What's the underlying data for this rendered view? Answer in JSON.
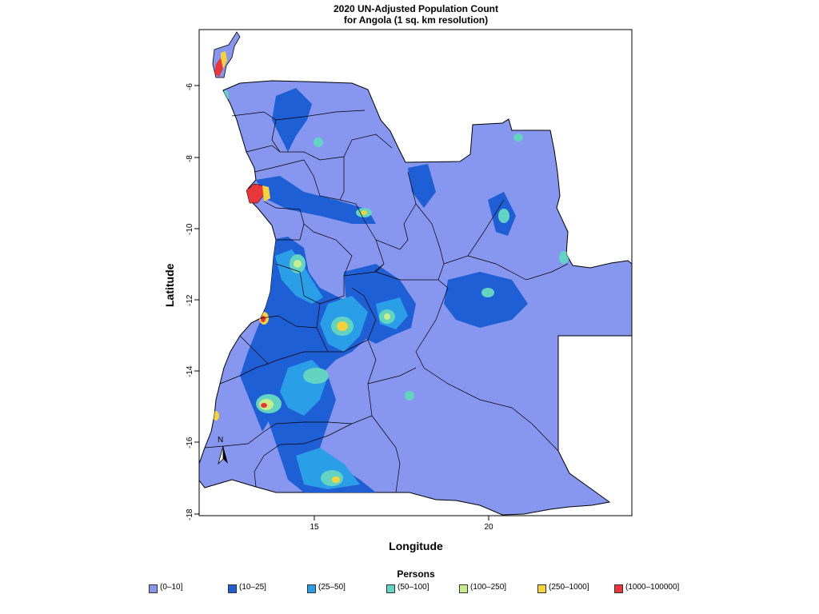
{
  "title": {
    "line1": "2020 UN-Adjusted Population Count",
    "line2": "for Angola (1 sq. km resolution)"
  },
  "axes": {
    "xlabel": "Longitude",
    "ylabel": "Latitude",
    "x_ticks": [
      "15",
      "20"
    ],
    "y_ticks": [
      "-6",
      "-8",
      "-10",
      "-12",
      "-14",
      "-16",
      "-18"
    ]
  },
  "north_arrow": {
    "letter": "N",
    "icon": "north-arrow-icon"
  },
  "legend": {
    "title": "Persons",
    "items": [
      {
        "label": "(0–10]",
        "color": "#8796ee"
      },
      {
        "label": "(10–25]",
        "color": "#1f5fd6"
      },
      {
        "label": "(25–50]",
        "color": "#2b9ee8"
      },
      {
        "label": "(50–100]",
        "color": "#63d4c2"
      },
      {
        "label": "(100–250]",
        "color": "#c6ee8a"
      },
      {
        "label": "(250–1000]",
        "color": "#f6d23c"
      },
      {
        "label": "(1000–100000]",
        "color": "#e8363a"
      }
    ]
  }
}
